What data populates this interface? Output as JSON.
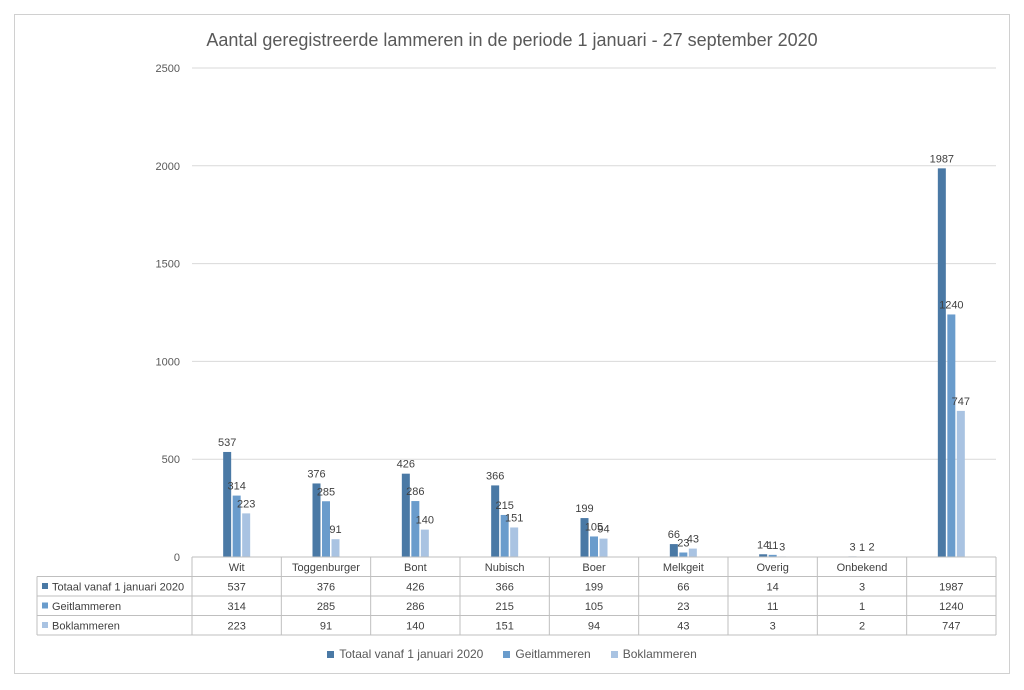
{
  "chart_data": {
    "type": "bar",
    "title": "Aantal geregistreerde lammeren in de periode 1 januari - 27 september 2020",
    "categories": [
      "Wit",
      "Toggenburger",
      "Bont",
      "Nubisch",
      "Boer",
      "Melkgeit",
      "Overig",
      "Onbekend",
      ""
    ],
    "series": [
      {
        "name": "Totaal vanaf 1 januari 2020",
        "color": "#4a79a5",
        "values": [
          537,
          376,
          426,
          366,
          199,
          66,
          14,
          3,
          1987
        ]
      },
      {
        "name": "Geitlammeren",
        "color": "#6a9ccc",
        "values": [
          314,
          285,
          286,
          215,
          105,
          23,
          11,
          1,
          1240
        ]
      },
      {
        "name": "Boklammeren",
        "color": "#a9c3e2",
        "values": [
          223,
          91,
          140,
          151,
          94,
          43,
          3,
          2,
          747
        ]
      }
    ],
    "yticks": [
      0,
      500,
      1000,
      1500,
      2000,
      2500
    ],
    "ylim": [
      0,
      2500
    ],
    "grid": true,
    "legend": "bottom",
    "data_table": true
  }
}
